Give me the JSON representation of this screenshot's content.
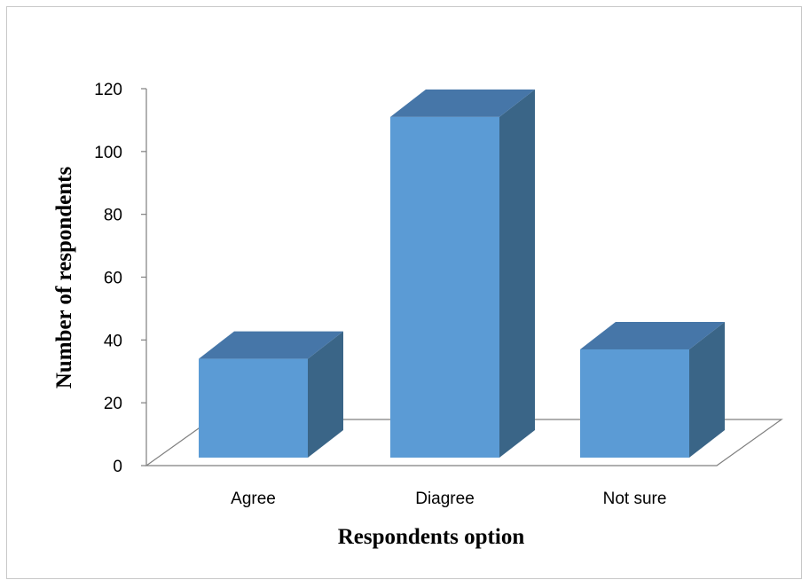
{
  "chart_data": {
    "type": "bar",
    "style": "3d-column",
    "categories": [
      "Agree",
      "Diagree",
      "Not sure"
    ],
    "values": [
      34,
      111,
      37
    ],
    "xlabel": "Respondents option",
    "ylabel": "Number of respondents",
    "ylim": [
      0,
      120
    ],
    "yticks": [
      0,
      20,
      40,
      60,
      80,
      100,
      120
    ],
    "grid": false,
    "legend": "none",
    "colors": {
      "front": "#5b9bd5",
      "top": "#4676a8",
      "side": "#3a6587",
      "floor": "#ffffff",
      "floor_edge": "#7f7f7f",
      "axis": "#7f7f7f"
    }
  }
}
